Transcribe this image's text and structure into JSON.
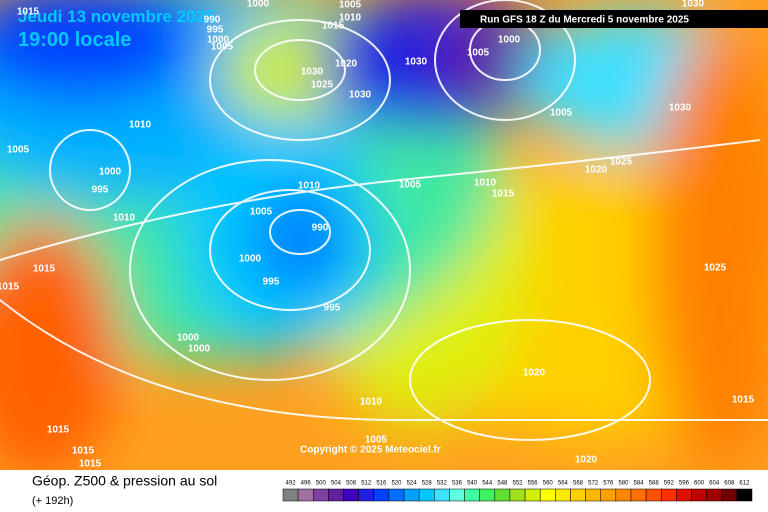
{
  "header": {
    "date": "Jeudi 13 novembre 2025",
    "time": "19:00 locale",
    "run": "Run GFS 18 Z du Mercredi 5 novembre 2025"
  },
  "isobar_labels": [
    "1015",
    "1000",
    "1005",
    "990",
    "995",
    "1000",
    "1005",
    "1015",
    "1010",
    "1030",
    "1025",
    "1020",
    "1030",
    "1030",
    "1000",
    "1005",
    "1030",
    "1030",
    "1005",
    "1010",
    "1005",
    "1000",
    "995",
    "1010",
    "1025",
    "1020",
    "1010",
    "1005",
    "1010",
    "1015",
    "1005",
    "990",
    "1000",
    "995",
    "995",
    "1025",
    "1015",
    "1015",
    "1000",
    "1000",
    "1020",
    "1010",
    "1015",
    "1015",
    "1005",
    "1015",
    "1015",
    "1020"
  ],
  "copyright": "Copyright © 2025 Meteociel.fr",
  "footer": {
    "title": "Géop. Z500 & pression au sol",
    "lead": "(+ 192h)"
  },
  "scale": {
    "labels": [
      "492",
      "496",
      "500",
      "504",
      "508",
      "512",
      "516",
      "520",
      "524",
      "528",
      "532",
      "536",
      "540",
      "544",
      "548",
      "552",
      "556",
      "560",
      "564",
      "568",
      "572",
      "576",
      "580",
      "584",
      "588",
      "592",
      "596",
      "600",
      "604",
      "608",
      "612"
    ],
    "colors": [
      "#808080",
      "#a070a0",
      "#8040a0",
      "#6020a0",
      "#4000c0",
      "#2020e0",
      "#0040ff",
      "#0070ff",
      "#00a0ff",
      "#00c8ff",
      "#40e0ff",
      "#60ffe0",
      "#40ffa0",
      "#40f060",
      "#60e030",
      "#a0e020",
      "#d0f000",
      "#ffff00",
      "#ffe800",
      "#ffd000",
      "#ffb800",
      "#ffa000",
      "#ff8800",
      "#ff7000",
      "#ff5000",
      "#ff3000",
      "#e01000",
      "#c00000",
      "#a00000",
      "#700000",
      "#000000"
    ]
  }
}
